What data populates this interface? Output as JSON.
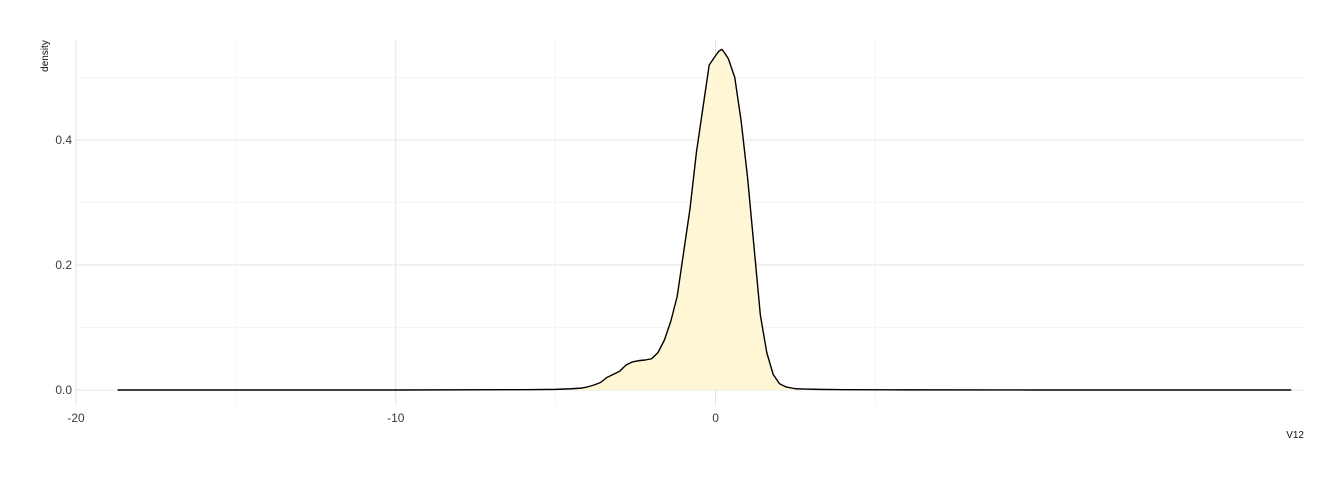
{
  "chart_data": {
    "type": "area",
    "xlabel": "V12",
    "ylabel": "density",
    "xlim": [
      -20,
      18.4
    ],
    "ylim": [
      0,
      0.56
    ],
    "x_ticks": [
      -20,
      -10,
      0
    ],
    "x_tick_labels": [
      "-20",
      "-10",
      "0"
    ],
    "x_minor_ticks": [
      -15,
      -5,
      5
    ],
    "y_ticks": [
      0,
      0.2,
      0.4
    ],
    "y_tick_labels": [
      "0.0",
      "0.2",
      "0.4"
    ],
    "y_minor_ticks": [
      0.1,
      0.3,
      0.5
    ],
    "grid": true,
    "colors": {
      "fill": "#fff6d5",
      "line": "#000000"
    },
    "series": [
      {
        "x": [
          -18.7,
          -15,
          -10,
          -6,
          -5,
          -4.5,
          -4.2,
          -4.0,
          -3.8,
          -3.6,
          -3.4,
          -3.2,
          -3.0,
          -2.8,
          -2.6,
          -2.4,
          -2.2,
          -2.0,
          -1.8,
          -1.6,
          -1.4,
          -1.2,
          -1.0,
          -0.8,
          -0.6,
          -0.4,
          -0.2,
          0.0,
          0.1,
          0.2,
          0.3,
          0.4,
          0.6,
          0.8,
          1.0,
          1.2,
          1.4,
          1.6,
          1.8,
          2.0,
          2.2,
          2.5,
          2.8,
          3.2,
          4.0,
          6.0,
          10.0,
          15.0,
          18.0
        ],
        "y": [
          0.0,
          0.0,
          0.0,
          0.0005,
          0.001,
          0.002,
          0.003,
          0.005,
          0.008,
          0.012,
          0.02,
          0.025,
          0.03,
          0.04,
          0.045,
          0.047,
          0.048,
          0.05,
          0.06,
          0.08,
          0.11,
          0.15,
          0.22,
          0.29,
          0.38,
          0.45,
          0.52,
          0.535,
          0.542,
          0.545,
          0.538,
          0.53,
          0.5,
          0.43,
          0.34,
          0.23,
          0.12,
          0.06,
          0.025,
          0.01,
          0.005,
          0.002,
          0.0015,
          0.001,
          0.0005,
          0.0002,
          0.0,
          0.0,
          0.0
        ]
      }
    ]
  }
}
